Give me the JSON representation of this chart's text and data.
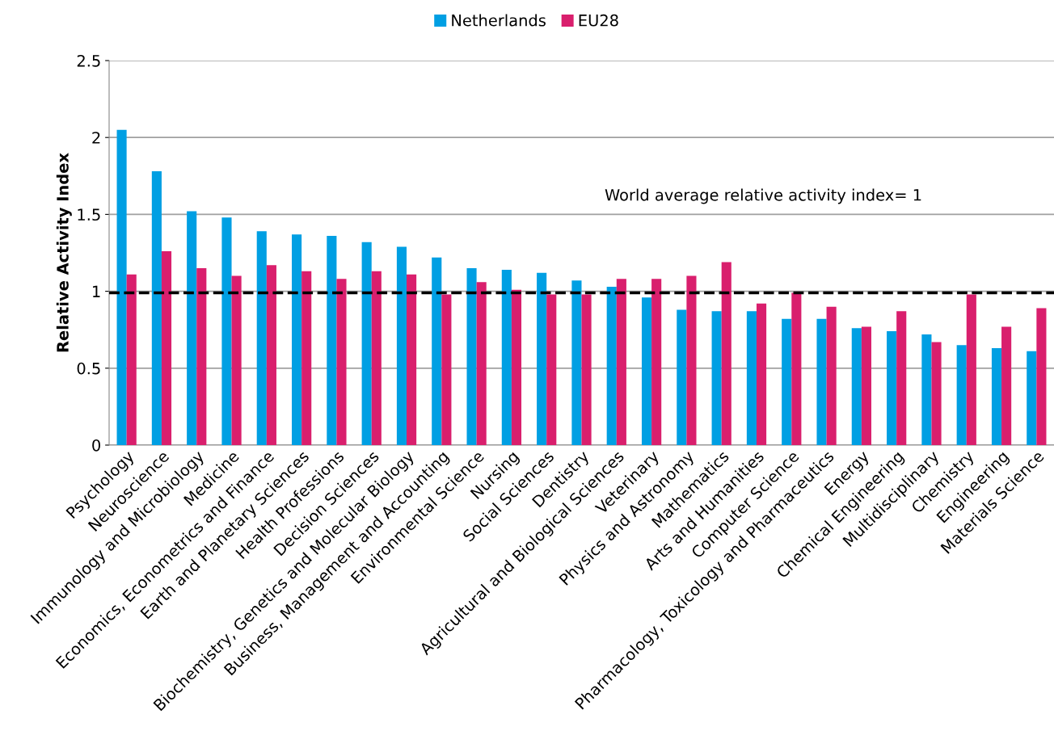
{
  "chart_data": {
    "type": "bar",
    "ylabel": "Relative Activity Index",
    "categories": [
      "Psychology",
      "Neuroscience",
      "Immunology and Microbiology",
      "Medicine",
      "Economics, Econometrics and Finance",
      "Earth and Planetary Sciences",
      "Health Professions",
      "Decision Sciences",
      "Biochemistry, Genetics and Molecular Biology",
      "Business, Management and Accounting",
      "Environmental Science",
      "Nursing",
      "Social Sciences",
      "Dentistry",
      "Agricultural and Biological Sciences",
      "Veterinary",
      "Physics and Astronomy",
      "Mathematics",
      "Arts and Humanities",
      "Computer Science",
      "Pharmacology, Toxicology and Pharmaceutics",
      "Energy",
      "Chemical Engineering",
      "Multidisciplinary",
      "Chemistry",
      "Engineering",
      "Materials Science"
    ],
    "series": [
      {
        "name": "Netherlands",
        "color": "#009fe3",
        "values": [
          2.05,
          1.78,
          1.52,
          1.48,
          1.39,
          1.37,
          1.36,
          1.32,
          1.29,
          1.22,
          1.15,
          1.14,
          1.12,
          1.07,
          1.03,
          0.96,
          0.88,
          0.87,
          0.87,
          0.82,
          0.82,
          0.76,
          0.74,
          0.72,
          0.65,
          0.63,
          0.61
        ]
      },
      {
        "name": "EU28",
        "color": "#d91f6d",
        "values": [
          1.11,
          1.26,
          1.15,
          1.1,
          1.17,
          1.13,
          1.08,
          1.13,
          1.11,
          0.98,
          1.06,
          1.01,
          0.98,
          0.98,
          1.08,
          1.08,
          1.1,
          1.19,
          0.92,
          0.99,
          0.9,
          0.77,
          0.87,
          0.67,
          0.98,
          0.77,
          0.89
        ]
      }
    ],
    "ylim": [
      0,
      2.5
    ],
    "yticks": [
      0,
      0.5,
      1,
      1.5,
      2,
      2.5
    ],
    "grid": "y",
    "legend": "top",
    "annotations": [
      "World average relative activity index= 1"
    ],
    "ref_lines": [
      {
        "axis": "y",
        "value": 0.99,
        "color": "#000000",
        "line_style": "dashed"
      }
    ]
  }
}
